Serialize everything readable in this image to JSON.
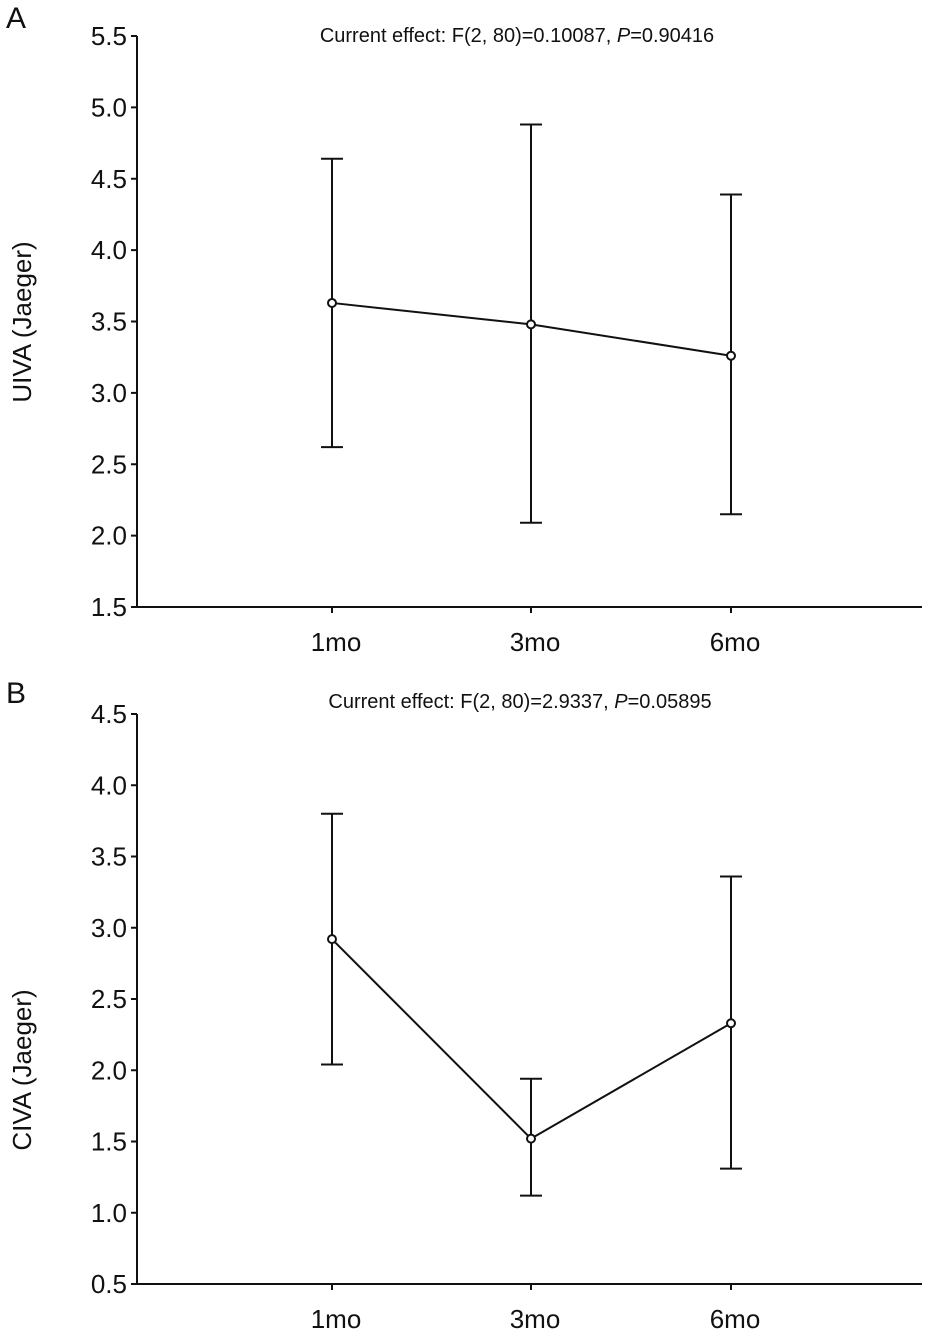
{
  "chart_data": [
    {
      "type": "line",
      "panel": "A",
      "annotation": {
        "prefix": "Current effect: F(2, 80)=0.10087, ",
        "p_label": "P",
        "p_value": "=0.90416"
      },
      "ylabel": "UIVA (Jaeger)",
      "xlabel": "",
      "categories": [
        "1mo",
        "3mo",
        "6mo"
      ],
      "values": [
        3.63,
        3.48,
        3.26
      ],
      "error_high": [
        4.64,
        4.88,
        4.39
      ],
      "error_low": [
        2.62,
        2.09,
        2.15
      ],
      "ylim": [
        1.5,
        5.5
      ],
      "yticks": [
        "1.5",
        "2.0",
        "2.5",
        "3.0",
        "3.5",
        "4.0",
        "4.5",
        "5.0",
        "5.5"
      ],
      "grid": false
    },
    {
      "type": "line",
      "panel": "B",
      "annotation": {
        "prefix": "Current effect: F(2, 80)=2.9337, ",
        "p_label": "P",
        "p_value": "=0.05895"
      },
      "ylabel": "CIVA (Jaeger)",
      "xlabel": "",
      "categories": [
        "1mo",
        "3mo",
        "6mo"
      ],
      "values": [
        2.92,
        1.52,
        2.33
      ],
      "error_high": [
        3.8,
        1.94,
        3.36
      ],
      "error_low": [
        2.04,
        1.12,
        1.31
      ],
      "ylim": [
        0.5,
        4.5
      ],
      "yticks": [
        "0.5",
        "1.0",
        "1.5",
        "2.0",
        "2.5",
        "3.0",
        "3.5",
        "4.0",
        "4.5"
      ],
      "grid": false
    }
  ]
}
